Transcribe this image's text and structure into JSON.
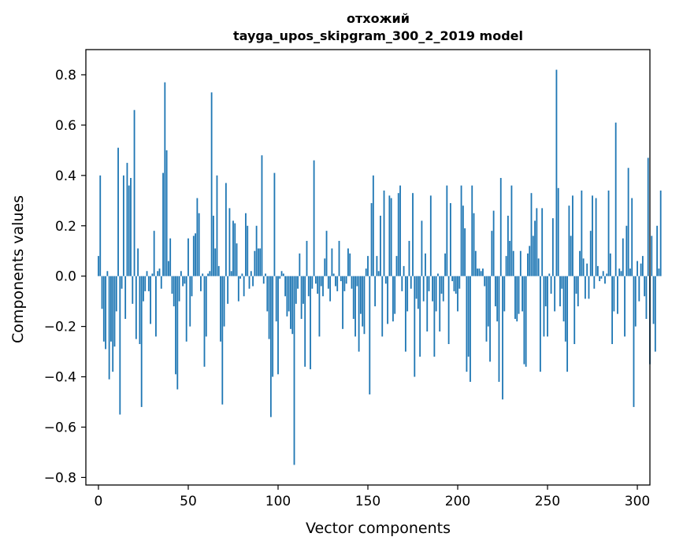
{
  "chart_data": {
    "type": "bar",
    "title": "отхожий",
    "subtitle": "tayga_upos_skipgram_300_2_2019 model",
    "xlabel": "Vector components",
    "ylabel": "Components values",
    "xlim": [
      -7,
      307
    ],
    "ylim": [
      -0.83,
      0.9
    ],
    "xticks": [
      0,
      50,
      100,
      150,
      200,
      250,
      300
    ],
    "xtick_labels": [
      "0",
      "50",
      "100",
      "150",
      "200",
      "250",
      "300"
    ],
    "yticks": [
      -0.8,
      -0.6,
      -0.4,
      -0.2,
      0.0,
      0.2,
      0.4,
      0.6,
      0.8
    ],
    "ytick_labels": [
      "−0.8",
      "−0.6",
      "−0.4",
      "−0.2",
      "0.0",
      "0.2",
      "0.4",
      "0.6",
      "0.8"
    ],
    "bar_color": "#1f77b4",
    "grid": false,
    "values": [
      0.08,
      0.4,
      -0.13,
      -0.26,
      -0.29,
      0.02,
      -0.41,
      -0.26,
      -0.38,
      -0.28,
      -0.14,
      0.51,
      -0.55,
      -0.05,
      0.4,
      -0.17,
      0.45,
      0.36,
      0.39,
      -0.11,
      0.66,
      -0.25,
      0.11,
      -0.27,
      -0.52,
      -0.1,
      -0.06,
      0.02,
      -0.06,
      -0.19,
      0.01,
      0.18,
      -0.24,
      0.02,
      0.03,
      -0.05,
      0.41,
      0.77,
      0.5,
      0.06,
      0.15,
      -0.07,
      -0.12,
      -0.39,
      -0.45,
      -0.1,
      0.02,
      -0.04,
      -0.03,
      -0.26,
      0.15,
      -0.2,
      -0.08,
      0.16,
      0.17,
      0.31,
      0.25,
      -0.06,
      0.01,
      -0.36,
      -0.24,
      0.01,
      0.02,
      0.73,
      0.24,
      0.11,
      0.4,
      0.04,
      -0.26,
      -0.51,
      -0.2,
      0.37,
      -0.11,
      0.27,
      0.02,
      0.22,
      0.21,
      0.13,
      -0.1,
      -0.01,
      0.01,
      -0.08,
      0.25,
      0.2,
      -0.05,
      0.02,
      -0.04,
      0.1,
      0.2,
      0.11,
      0.11,
      0.48,
      -0.03,
      0.01,
      -0.14,
      -0.25,
      -0.56,
      -0.4,
      0.41,
      -0.18,
      -0.39,
      -0.01,
      0.02,
      0.01,
      -0.08,
      -0.16,
      -0.14,
      -0.21,
      -0.23,
      -0.75,
      -0.11,
      -0.05,
      0.09,
      -0.17,
      -0.11,
      -0.36,
      0.14,
      -0.08,
      -0.37,
      -0.05,
      0.46,
      -0.03,
      -0.07,
      -0.24,
      -0.04,
      -0.08,
      0.07,
      0.18,
      -0.05,
      -0.1,
      0.11,
      0.01,
      -0.04,
      -0.06,
      0.14,
      -0.02,
      -0.21,
      -0.06,
      -0.03,
      0.11,
      0.09,
      -0.05,
      -0.17,
      -0.24,
      -0.04,
      -0.3,
      -0.15,
      -0.2,
      -0.23,
      0.03,
      0.08,
      -0.47,
      0.29,
      0.4,
      -0.12,
      0.08,
      0.02,
      0.24,
      -0.24,
      0.34,
      -0.03,
      -0.19,
      0.32,
      0.31,
      -0.18,
      -0.15,
      0.08,
      0.33,
      0.36,
      -0.06,
      0.04,
      -0.3,
      -0.14,
      0.14,
      -0.05,
      0.33,
      -0.4,
      -0.09,
      -0.13,
      -0.32,
      0.22,
      -0.1,
      0.09,
      -0.22,
      -0.06,
      0.32,
      -0.1,
      -0.32,
      -0.14,
      0.01,
      -0.22,
      -0.07,
      -0.1,
      0.09,
      0.36,
      -0.27,
      0.29,
      -0.02,
      -0.06,
      -0.07,
      -0.14,
      -0.05,
      0.36,
      0.28,
      0.19,
      -0.38,
      -0.32,
      -0.42,
      0.36,
      0.25,
      0.1,
      0.03,
      0.03,
      0.02,
      0.03,
      -0.04,
      -0.26,
      -0.2,
      -0.34,
      0.18,
      0.26,
      -0.12,
      -0.18,
      -0.42,
      0.39,
      -0.49,
      -0.14,
      0.08,
      0.24,
      0.14,
      0.36,
      0.1,
      -0.17,
      -0.18,
      -0.15,
      0.1,
      -0.14,
      -0.35,
      -0.36,
      0.09,
      0.12,
      0.33,
      0.16,
      0.22,
      0.27,
      0.07,
      -0.38,
      0.27,
      -0.24,
      -0.12,
      -0.24,
      0.01,
      -0.07,
      0.23,
      -0.14,
      0.82,
      0.35,
      -0.12,
      -0.05,
      -0.18,
      -0.26,
      -0.38,
      0.28,
      0.16,
      0.32,
      -0.27,
      -0.07,
      -0.12,
      0.1,
      0.34,
      0.07,
      -0.09,
      0.05,
      -0.09,
      0.18,
      0.32,
      -0.05,
      0.31,
      0.04,
      -0.02,
      -0.01,
      0.02,
      -0.03,
      0.01,
      0.34,
      0.09,
      -0.27,
      -0.14,
      0.61,
      -0.15,
      0.03,
      0.02,
      0.15,
      -0.24,
      0.2,
      0.43,
      0.03,
      0.31,
      -0.52,
      -0.2,
      0.06,
      -0.1,
      0.05,
      0.08,
      -0.08,
      -0.17,
      0.47,
      -0.35,
      0.16,
      -0.19,
      -0.3,
      0.2,
      0.03,
      0.34
    ]
  }
}
